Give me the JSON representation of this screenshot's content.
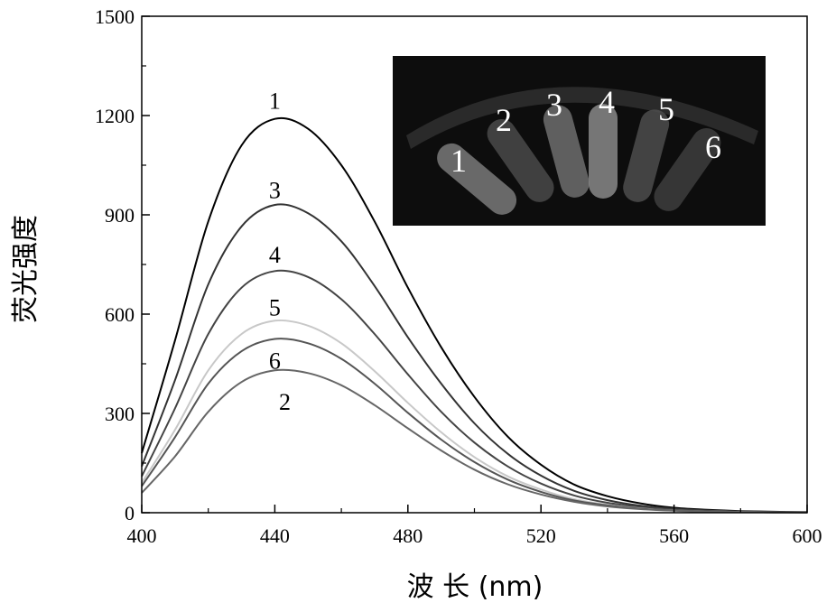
{
  "chart_data": {
    "type": "line",
    "xlabel": "波 长 (nm)",
    "ylabel": "荧光强度",
    "xlim": [
      400,
      600
    ],
    "ylim": [
      0,
      1500
    ],
    "xticks": [
      400,
      440,
      480,
      520,
      560,
      600
    ],
    "yticks": [
      0,
      300,
      600,
      900,
      1200,
      1500
    ],
    "grid": false,
    "series": [
      {
        "name": "1",
        "color": "#000000",
        "peak_x": 440,
        "peak_y": 1190,
        "x": [
          400,
          410,
          420,
          430,
          440,
          450,
          460,
          470,
          480,
          490,
          500,
          510,
          520,
          530,
          540,
          550,
          560,
          570,
          580,
          590,
          600
        ],
        "y": [
          180,
          520,
          880,
          1110,
          1190,
          1160,
          1050,
          880,
          680,
          500,
          350,
          230,
          145,
          85,
          50,
          28,
          15,
          9,
          5,
          3,
          2
        ]
      },
      {
        "name": "3",
        "color": "#333333",
        "peak_x": 440,
        "peak_y": 930,
        "x": [
          400,
          410,
          420,
          430,
          440,
          450,
          460,
          470,
          480,
          490,
          500,
          510,
          520,
          530,
          540,
          550,
          560,
          570,
          580,
          590,
          600
        ],
        "y": [
          140,
          400,
          690,
          865,
          930,
          905,
          820,
          685,
          530,
          390,
          270,
          178,
          112,
          66,
          38,
          21,
          12,
          7,
          4,
          2,
          1
        ]
      },
      {
        "name": "4",
        "color": "#444444",
        "peak_x": 440,
        "peak_y": 730,
        "x": [
          400,
          410,
          420,
          430,
          440,
          450,
          460,
          470,
          480,
          490,
          500,
          510,
          520,
          530,
          540,
          550,
          560,
          570,
          580,
          590,
          600
        ],
        "y": [
          110,
          315,
          540,
          680,
          730,
          712,
          645,
          540,
          418,
          305,
          212,
          140,
          88,
          52,
          30,
          17,
          9,
          5,
          3,
          2,
          1
        ]
      },
      {
        "name": "5",
        "color": "#c8c8c8",
        "peak_x": 440,
        "peak_y": 580,
        "x": [
          400,
          410,
          420,
          430,
          440,
          450,
          460,
          470,
          480,
          490,
          500,
          510,
          520,
          530,
          540,
          550,
          560,
          570,
          580,
          590,
          600
        ],
        "y": [
          90,
          250,
          430,
          540,
          580,
          565,
          512,
          428,
          332,
          243,
          168,
          110,
          70,
          41,
          24,
          13,
          7,
          4,
          2,
          1,
          1
        ]
      },
      {
        "name": "6",
        "color": "#555555",
        "peak_x": 440,
        "peak_y": 525,
        "x": [
          400,
          410,
          420,
          430,
          440,
          450,
          460,
          470,
          480,
          490,
          500,
          510,
          520,
          530,
          540,
          550,
          560,
          570,
          580,
          590,
          600
        ],
        "y": [
          80,
          228,
          390,
          488,
          525,
          512,
          465,
          390,
          302,
          221,
          153,
          100,
          63,
          37,
          22,
          12,
          7,
          4,
          2,
          1,
          1
        ]
      },
      {
        "name": "2",
        "color": "#666666",
        "peak_x": 443,
        "peak_y": 430,
        "x": [
          400,
          410,
          420,
          430,
          440,
          450,
          460,
          470,
          480,
          490,
          500,
          510,
          520,
          530,
          540,
          550,
          560,
          570,
          580,
          590,
          600
        ],
        "y": [
          60,
          170,
          305,
          395,
          430,
          422,
          385,
          325,
          255,
          188,
          130,
          86,
          55,
          33,
          19,
          11,
          6,
          3,
          2,
          1,
          1
        ]
      }
    ],
    "curve_labels": [
      {
        "text": "1",
        "x": 440,
        "y": 1245
      },
      {
        "text": "3",
        "x": 440,
        "y": 975
      },
      {
        "text": "4",
        "x": 440,
        "y": 780
      },
      {
        "text": "5",
        "x": 440,
        "y": 620
      },
      {
        "text": "6",
        "x": 440,
        "y": 460
      },
      {
        "text": "2",
        "x": 443,
        "y": 335
      }
    ]
  },
  "inset": {
    "tubes": [
      "1",
      "2",
      "3",
      "4",
      "5",
      "6"
    ]
  }
}
